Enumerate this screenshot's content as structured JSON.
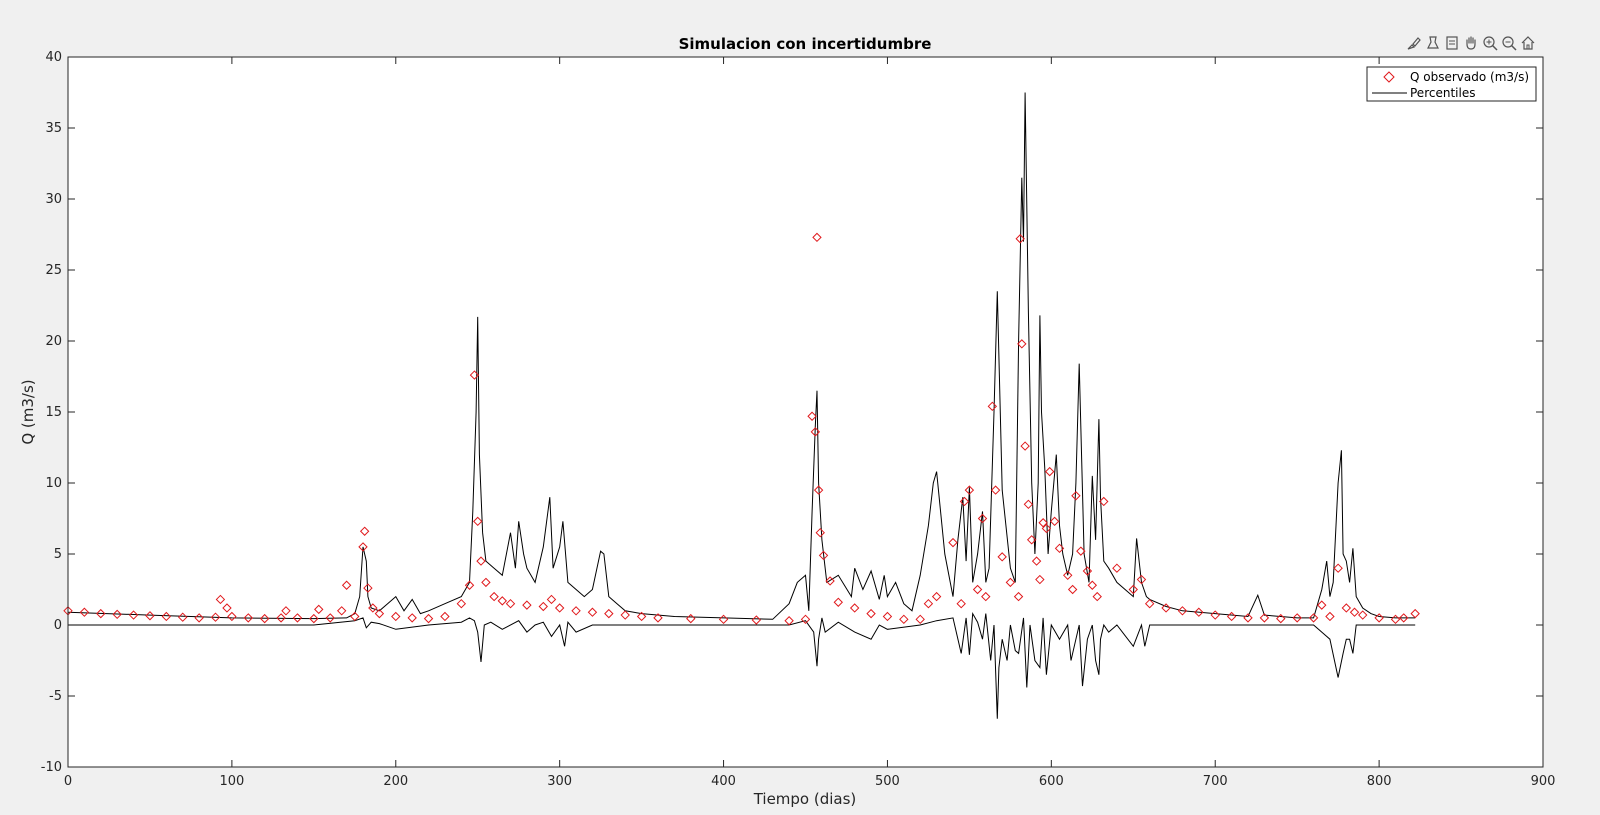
{
  "figure": {
    "background": "#f0f0f0",
    "toolbar": {
      "icons": [
        "edit-brush-icon",
        "insert-datatip-icon",
        "data-cursor-icon",
        "pan-hand-icon",
        "zoom-in-icon",
        "zoom-out-icon",
        "home-restore-view-icon"
      ]
    }
  },
  "chart_data": {
    "type": "line",
    "title": "Simulacion con incertidumbre",
    "xlabel": "Tiempo (dias)",
    "ylabel": "Q (m3/s)",
    "xlim": [
      0,
      900
    ],
    "ylim": [
      -10,
      40
    ],
    "xticks": [
      0,
      100,
      200,
      300,
      400,
      500,
      600,
      700,
      800,
      900
    ],
    "yticks": [
      -10,
      -5,
      0,
      5,
      10,
      15,
      20,
      25,
      30,
      35,
      40
    ],
    "grid": false,
    "legend": {
      "placement": "top-right",
      "entries": [
        "Q observado (m3/s)",
        "Percentiles"
      ]
    },
    "colors": {
      "observed": "#e0191c",
      "percentiles": "#000000"
    },
    "series": [
      {
        "name": "Q observado (m3/s)",
        "style": "markers",
        "marker": "diamond",
        "x": [
          0,
          10,
          20,
          30,
          40,
          50,
          60,
          70,
          80,
          90,
          93,
          97,
          100,
          110,
          120,
          130,
          133,
          140,
          150,
          153,
          160,
          167,
          170,
          175,
          180,
          181,
          183,
          186,
          190,
          200,
          210,
          220,
          230,
          240,
          245,
          248,
          250,
          252,
          255,
          260,
          265,
          270,
          280,
          290,
          295,
          300,
          310,
          320,
          330,
          340,
          350,
          360,
          380,
          400,
          420,
          440,
          450,
          454,
          456,
          457,
          458,
          459,
          461,
          465,
          470,
          480,
          490,
          500,
          510,
          520,
          525,
          530,
          540,
          545,
          547,
          550,
          555,
          558,
          560,
          564,
          566,
          570,
          575,
          580,
          581,
          582,
          584,
          586,
          588,
          591,
          593,
          595,
          597,
          599,
          602,
          605,
          610,
          613,
          615,
          618,
          622,
          625,
          628,
          632,
          640,
          650,
          655,
          660,
          670,
          680,
          690,
          700,
          710,
          720,
          730,
          740,
          750,
          760,
          765,
          770,
          775,
          780,
          785,
          790,
          800,
          810,
          815,
          822
        ],
        "y": [
          1.0,
          0.9,
          0.8,
          0.75,
          0.7,
          0.65,
          0.6,
          0.55,
          0.5,
          0.55,
          1.8,
          1.2,
          0.6,
          0.5,
          0.45,
          0.5,
          1.0,
          0.5,
          0.45,
          1.1,
          0.5,
          1.0,
          2.8,
          0.6,
          5.5,
          6.6,
          2.6,
          1.2,
          0.8,
          0.6,
          0.5,
          0.45,
          0.6,
          1.5,
          2.8,
          17.6,
          7.3,
          4.5,
          3.0,
          2.0,
          1.7,
          1.5,
          1.4,
          1.3,
          1.8,
          1.2,
          1.0,
          0.9,
          0.8,
          0.7,
          0.6,
          0.5,
          0.45,
          0.4,
          0.35,
          0.3,
          0.4,
          14.7,
          13.6,
          27.3,
          9.5,
          6.5,
          4.9,
          3.1,
          1.6,
          1.2,
          0.8,
          0.6,
          0.4,
          0.4,
          1.5,
          2.0,
          5.8,
          1.5,
          8.7,
          9.5,
          2.5,
          7.5,
          2.0,
          15.4,
          9.5,
          4.8,
          3.0,
          2.0,
          27.2,
          19.8,
          12.6,
          8.5,
          6.0,
          4.5,
          3.2,
          7.2,
          6.8,
          10.8,
          7.3,
          5.4,
          3.5,
          2.5,
          9.1,
          5.2,
          3.8,
          2.8,
          2.0,
          8.7,
          4.0,
          2.5,
          3.2,
          1.5,
          1.2,
          1.0,
          0.9,
          0.7,
          0.6,
          0.5,
          0.5,
          0.45,
          0.5,
          0.5,
          1.4,
          0.6,
          4.0,
          1.2,
          0.9,
          0.7,
          0.5,
          0.4,
          0.5,
          0.8
        ]
      },
      {
        "name": "Percentiles",
        "style": "line",
        "x": [
          0,
          50,
          100,
          150,
          170,
          175,
          178,
          180,
          182,
          183,
          185,
          190,
          195,
          200,
          205,
          210,
          215,
          220,
          230,
          240,
          245,
          247,
          249,
          250,
          251,
          253,
          255,
          260,
          265,
          270,
          273,
          275,
          278,
          280,
          285,
          290,
          294,
          296,
          300,
          302,
          305,
          310,
          315,
          320,
          325,
          327,
          330,
          335,
          340,
          350,
          370,
          400,
          430,
          440,
          445,
          450,
          452,
          454,
          456,
          457,
          458,
          460,
          463,
          470,
          478,
          480,
          485,
          490,
          495,
          498,
          500,
          505,
          510,
          515,
          520,
          525,
          528,
          530,
          535,
          540,
          543,
          546,
          548,
          550,
          552,
          555,
          558,
          560,
          562,
          565,
          567,
          570,
          575,
          578,
          580,
          582,
          583,
          584,
          586,
          588,
          590,
          592,
          593,
          594,
          596,
          598,
          600,
          603,
          605,
          607,
          610,
          613,
          615,
          617,
          620,
          623,
          625,
          627,
          629,
          630,
          632,
          635,
          640,
          645,
          650,
          652,
          655,
          658,
          660,
          670,
          680,
          700,
          720,
          726,
          730,
          750,
          760,
          765,
          768,
          770,
          772,
          775,
          777,
          778,
          780,
          782,
          784,
          786,
          790,
          795,
          800,
          810,
          822
        ],
        "y": [
          0.9,
          0.7,
          0.5,
          0.45,
          0.5,
          0.8,
          2.0,
          5.5,
          4.5,
          2.0,
          1.2,
          1.0,
          1.5,
          2.0,
          1.0,
          1.8,
          0.8,
          1.0,
          1.5,
          2.0,
          3.0,
          8.0,
          15.0,
          21.7,
          12.0,
          6.5,
          4.5,
          4.0,
          3.5,
          6.5,
          4.0,
          7.3,
          5.0,
          4.0,
          3.0,
          5.5,
          9.0,
          4.0,
          5.5,
          7.3,
          3.0,
          2.5,
          2.0,
          2.5,
          5.2,
          5.0,
          2.0,
          1.5,
          1.0,
          0.8,
          0.6,
          0.5,
          0.4,
          1.5,
          3.0,
          3.5,
          1.0,
          8.0,
          14.0,
          16.5,
          10.0,
          6.0,
          3.0,
          3.5,
          2.0,
          4.0,
          2.5,
          3.8,
          1.8,
          3.5,
          2.0,
          3.0,
          1.5,
          1.0,
          3.5,
          7.0,
          10.0,
          10.8,
          5.0,
          2.0,
          6.0,
          9.0,
          4.5,
          9.7,
          3.0,
          5.0,
          8.0,
          3.0,
          4.0,
          15.0,
          23.5,
          9.5,
          4.0,
          3.0,
          20.0,
          31.5,
          27.0,
          37.5,
          22.0,
          10.0,
          5.0,
          10.0,
          21.8,
          15.0,
          11.0,
          5.0,
          8.0,
          12.0,
          7.0,
          5.0,
          3.5,
          5.0,
          10.0,
          18.4,
          5.0,
          3.0,
          10.5,
          6.0,
          14.5,
          9.0,
          4.5,
          4.0,
          3.0,
          2.5,
          2.0,
          6.1,
          3.0,
          2.0,
          1.8,
          1.3,
          1.0,
          0.8,
          0.6,
          2.1,
          0.7,
          0.5,
          0.5,
          2.5,
          4.5,
          2.0,
          3.0,
          10.0,
          12.3,
          5.0,
          4.5,
          3.0,
          5.4,
          2.0,
          1.2,
          0.8,
          0.6,
          0.5,
          0.5
        ]
      },
      {
        "name": "Percentiles",
        "style": "line",
        "x": [
          0,
          50,
          100,
          150,
          175,
          180,
          182,
          185,
          190,
          200,
          220,
          240,
          245,
          248,
          250,
          252,
          254,
          258,
          265,
          275,
          280,
          285,
          290,
          295,
          300,
          303,
          305,
          310,
          320,
          330,
          350,
          400,
          440,
          450,
          455,
          457,
          458,
          460,
          462,
          470,
          480,
          490,
          495,
          500,
          520,
          530,
          540,
          545,
          548,
          550,
          552,
          555,
          558,
          560,
          563,
          565,
          567,
          568,
          570,
          573,
          575,
          578,
          580,
          583,
          585,
          587,
          590,
          593,
          595,
          597,
          600,
          605,
          610,
          612,
          615,
          617,
          619,
          622,
          625,
          627,
          629,
          630,
          632,
          635,
          640,
          650,
          655,
          657,
          660,
          680,
          700,
          720,
          740,
          760,
          770,
          775,
          778,
          780,
          782,
          784,
          786,
          790,
          800,
          822
        ],
        "y": [
          0,
          0,
          0,
          0,
          0.3,
          0.5,
          -0.2,
          0.2,
          0.1,
          -0.3,
          0.0,
          0.2,
          0.5,
          0.3,
          -0.5,
          -2.6,
          0.0,
          0.2,
          -0.3,
          0.3,
          -0.5,
          0.0,
          0.2,
          -0.8,
          0.0,
          -1.5,
          0.2,
          -0.5,
          0.0,
          0.0,
          0.0,
          0.0,
          0.0,
          0.3,
          -0.5,
          -2.9,
          -1.0,
          0.5,
          -0.5,
          0.2,
          -0.5,
          -1.0,
          0.0,
          -0.3,
          0.0,
          0.3,
          0.5,
          -2.0,
          0.5,
          -2.1,
          0.8,
          0.2,
          -1.0,
          0.8,
          -2.5,
          0.0,
          -6.6,
          -3.0,
          -1.0,
          -2.5,
          0.0,
          -1.8,
          -2.0,
          0.5,
          -4.4,
          0.0,
          -2.5,
          -3.0,
          0.5,
          -3.5,
          0.0,
          -1.0,
          0.0,
          -2.5,
          -1.0,
          0.0,
          -4.3,
          -1.0,
          0.0,
          -2.5,
          -3.5,
          -1.0,
          0.0,
          -0.5,
          0.0,
          -1.5,
          0.0,
          -1.5,
          0.0,
          0.0,
          0.0,
          0.0,
          0.0,
          0.0,
          -1.0,
          -3.7,
          -2.0,
          -1.0,
          -1.0,
          -2.0,
          0.0,
          0.0,
          0.0,
          0.0
        ]
      }
    ]
  }
}
